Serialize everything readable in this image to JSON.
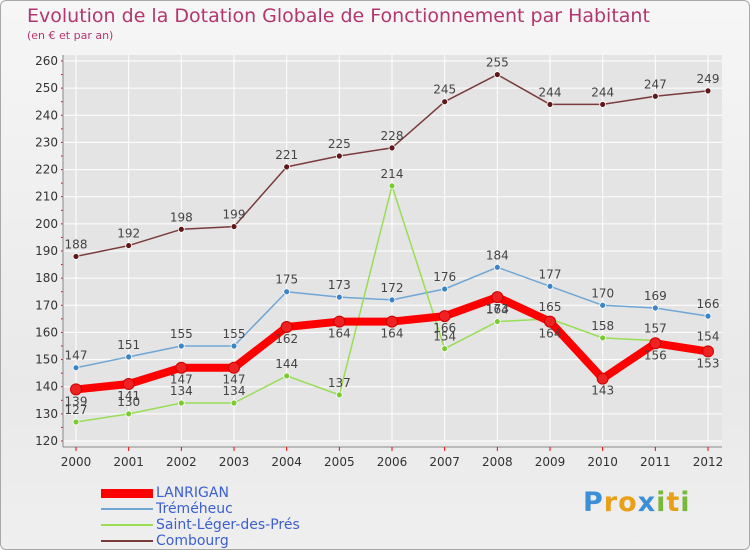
{
  "title": "Evolution de la Dotation Globale de Fonctionnement par Habitant",
  "subtitle": "(en € et par an)",
  "logo_text": "Proxiti",
  "colors": {
    "title": "#b3366e",
    "axis_text": "#333333",
    "legend_text": "#3c5fd0",
    "grid": "#ffffff",
    "tick_marks": "#ff0000"
  },
  "chart_data": {
    "type": "line",
    "x": [
      "2000",
      "2001",
      "2002",
      "2003",
      "2004",
      "2005",
      "2006",
      "2007",
      "2008",
      "2009",
      "2010",
      "2011",
      "2012"
    ],
    "ylim": [
      120,
      260
    ],
    "yticks": [
      120,
      130,
      140,
      150,
      160,
      170,
      180,
      190,
      200,
      210,
      220,
      230,
      240,
      250,
      260
    ],
    "grid": true,
    "legend_position": "bottom-left",
    "series": [
      {
        "name": "LANRIGAN",
        "color": "#ff0000",
        "marker": "#ee2222",
        "width": 8,
        "labels": "below",
        "values": [
          139,
          141,
          147,
          147,
          162,
          164,
          164,
          166,
          173,
          164,
          143,
          156,
          153
        ]
      },
      {
        "name": "Tréméheuc",
        "color": "#6fa6d6",
        "marker": "#3c84c8",
        "width": 1.5,
        "labels": "above",
        "values": [
          147,
          151,
          155,
          155,
          175,
          173,
          172,
          176,
          184,
          177,
          170,
          169,
          166
        ]
      },
      {
        "name": "Saint-Léger-des-Prés",
        "color": "#99dd55",
        "marker": "#7bcc33",
        "width": 1.5,
        "labels": "above",
        "values": [
          127,
          130,
          134,
          134,
          144,
          137,
          214,
          154,
          164,
          165,
          158,
          157,
          154
        ]
      },
      {
        "name": "Combourg",
        "color": "#7a3b3b",
        "marker": "#5e1818",
        "width": 1.5,
        "labels": "above",
        "values": [
          188,
          192,
          198,
          199,
          221,
          225,
          228,
          245,
          255,
          244,
          244,
          247,
          249
        ]
      }
    ]
  }
}
